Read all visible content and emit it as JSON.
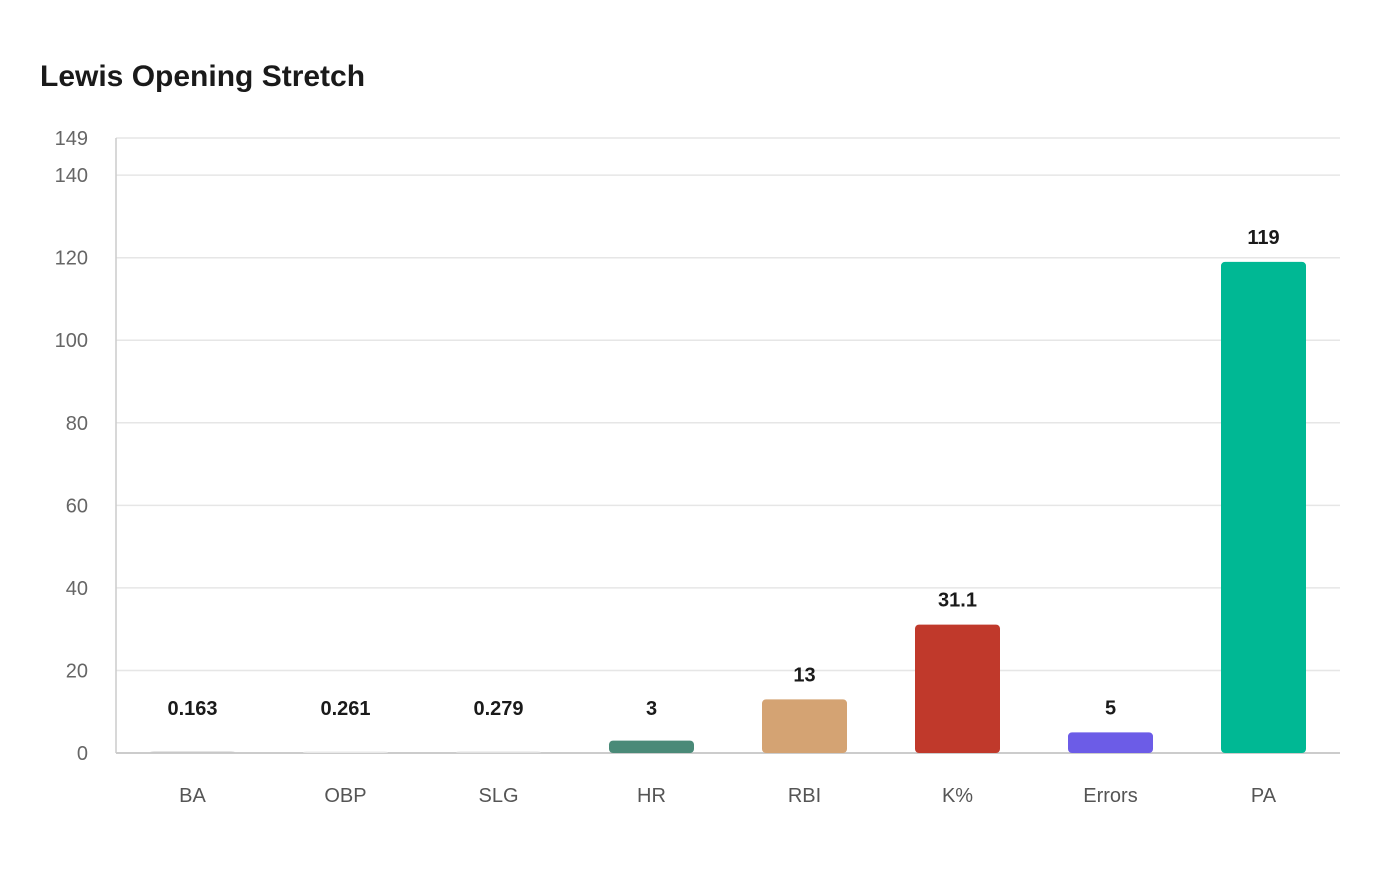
{
  "chart_data": {
    "type": "bar",
    "title": "Lewis Opening Stretch",
    "xlabel": "",
    "ylabel": "",
    "categories": [
      "BA",
      "OBP",
      "SLG",
      "HR",
      "RBI",
      "K%",
      "Errors",
      "PA"
    ],
    "values": [
      0.163,
      0.261,
      0.279,
      3,
      13,
      31.1,
      5,
      119
    ],
    "value_labels": [
      "0.163",
      "0.261",
      "0.279",
      "3",
      "13",
      "31.1",
      "5",
      "119"
    ],
    "colors": [
      "#c8c8c8",
      "#e8e8e8",
      "#e0e0e0",
      "#4a8a78",
      "#d4a373",
      "#c0392b",
      "#6c5ce7",
      "#00b894"
    ],
    "ylim": [
      0,
      149
    ],
    "yticks": [
      0,
      20,
      40,
      60,
      80,
      100,
      120,
      140,
      149
    ],
    "grid": true,
    "legend": "none"
  }
}
